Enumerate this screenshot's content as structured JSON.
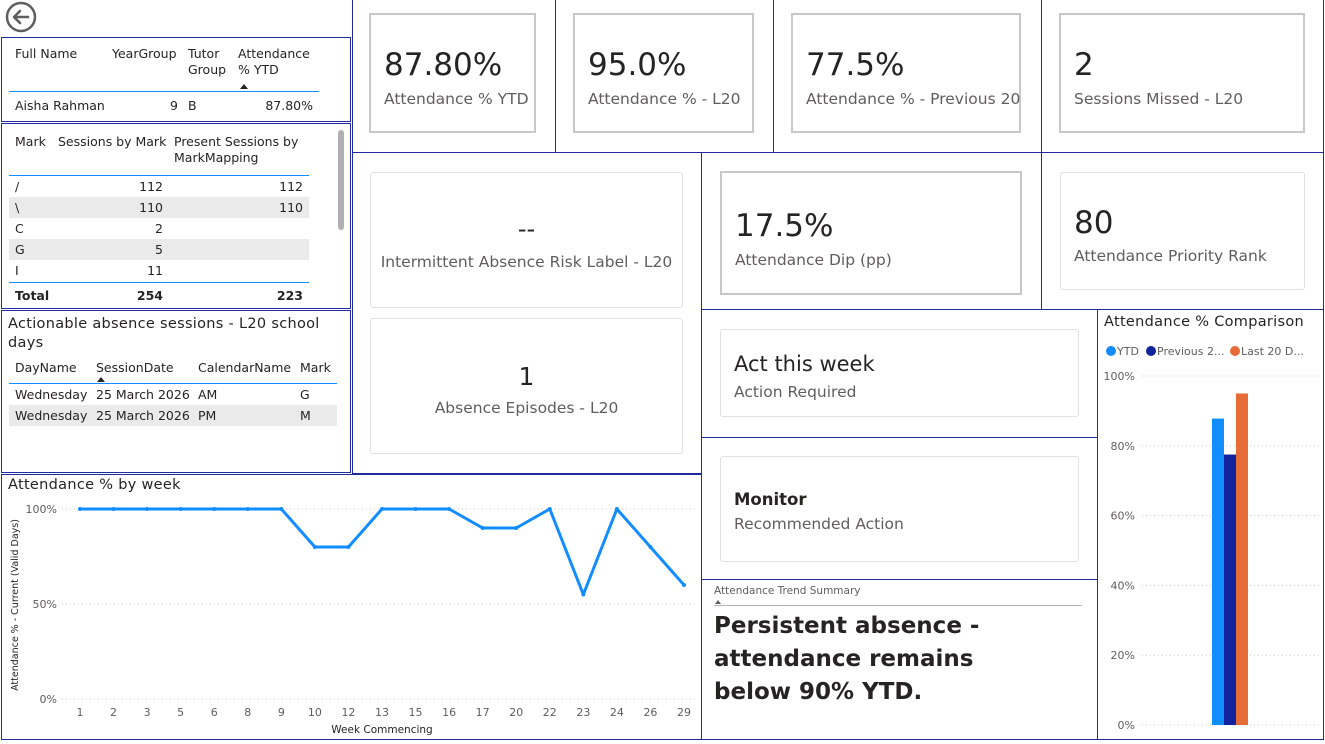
{
  "back_button": {
    "icon": "arrow-left-circle-icon"
  },
  "student_table": {
    "headers": [
      "Full Name",
      "YearGroup",
      "Tutor Group",
      "Attendance % YTD"
    ],
    "row": {
      "full_name": "Aisha Rahman",
      "year_group": "9",
      "tutor_group": "B",
      "attendance_ytd": "87.80%"
    }
  },
  "marks_table": {
    "headers": [
      "Mark",
      "Sessions by Mark",
      "Present Sessions by MarkMapping"
    ],
    "rows": [
      {
        "mark": "/",
        "sessions": "112",
        "present": "112"
      },
      {
        "mark": "\\",
        "sessions": "110",
        "present": "110"
      },
      {
        "mark": "C",
        "sessions": "2",
        "present": ""
      },
      {
        "mark": "G",
        "sessions": "5",
        "present": ""
      },
      {
        "mark": "I",
        "sessions": "11",
        "present": ""
      }
    ],
    "total": {
      "label": "Total",
      "sessions": "254",
      "present": "223"
    }
  },
  "absence_table": {
    "title": "Actionable absence sessions - L20 school days",
    "headers": [
      "DayName",
      "SessionDate",
      "CalendarName",
      "Mark"
    ],
    "rows": [
      {
        "day": "Wednesday",
        "date": "25 March 2026",
        "calendar": "AM",
        "mark": "G"
      },
      {
        "day": "Wednesday",
        "date": "25 March 2026",
        "calendar": "PM",
        "mark": "M"
      }
    ]
  },
  "kpis": {
    "ytd": {
      "value": "87.80%",
      "label": "Attendance % YTD"
    },
    "l20": {
      "value": "95.0%",
      "label": "Attendance % - L20"
    },
    "prev20": {
      "value": "77.5%",
      "label": "Attendance % - Previous 20"
    },
    "missed": {
      "value": "2",
      "label": "Sessions Missed - L20"
    },
    "risk": {
      "value": "--",
      "label": "Intermittent Absence Risk Label - L20"
    },
    "dip": {
      "value": "17.5%",
      "label": "Attendance Dip (pp)"
    },
    "rank": {
      "value": "80",
      "label": "Attendance Priority Rank"
    },
    "episodes": {
      "value": "1",
      "label": "Absence Episodes - L20"
    }
  },
  "actions": {
    "act": {
      "value": "Act this week",
      "label": "Action Required"
    },
    "monitor": {
      "value": "Monitor",
      "label": "Recommended Action"
    }
  },
  "trend_summary": {
    "header": "Attendance Trend Summary",
    "text": "Persistent absence - attendance remains below 90% YTD."
  },
  "chart_data": [
    {
      "type": "line",
      "title": "Attendance % by week",
      "xlabel": "Week Commencing",
      "ylabel": "Attendance % - Current (Valid Days)",
      "x": [
        "1",
        "2",
        "3",
        "5",
        "6",
        "8",
        "9",
        "10",
        "12",
        "13",
        "15",
        "16",
        "17",
        "20",
        "22",
        "23",
        "24",
        "26",
        "29"
      ],
      "series": [
        {
          "values": [
            100,
            100,
            100,
            100,
            100,
            100,
            100,
            80,
            80,
            100,
            100,
            100,
            90,
            90,
            100,
            55,
            100,
            80,
            60
          ]
        }
      ],
      "yticks": [
        "0%",
        "50%",
        "100%"
      ],
      "ylim": [
        0,
        100
      ],
      "color": "#118dff",
      "grid": true
    },
    {
      "type": "bar",
      "title": "Attendance % Comparison",
      "series": [
        {
          "name": "YTD",
          "legend": "YTD",
          "value": 87.8,
          "color": "#118dff"
        },
        {
          "name": "Previous 20",
          "legend": "Previous 2...",
          "value": 77.5,
          "color": "#12239e"
        },
        {
          "name": "Last 20 Days",
          "legend": "Last 20 D...",
          "value": 95.0,
          "color": "#e66c37"
        }
      ],
      "yticks": [
        "0%",
        "20%",
        "40%",
        "60%",
        "80%",
        "100%"
      ],
      "ylim": [
        0,
        100
      ],
      "legend_position": "top-left",
      "grid": true
    }
  ]
}
